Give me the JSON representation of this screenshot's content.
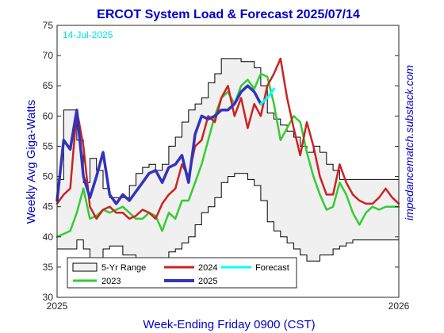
{
  "chart_data": {
    "type": "line",
    "title": "ERCOT System Load & Forecast 2025/07/14",
    "ylabel": "Weekly Avg Giga-Watts",
    "xlabel": "Week-Ending Friday 0900 (CST)",
    "right_label": "impedancematch.substack.com",
    "date_label": "14-Jul-2025",
    "x_tick_labels": [
      "2025",
      "2026"
    ],
    "y_ticks": [
      30,
      35,
      40,
      45,
      50,
      55,
      60,
      65,
      70,
      75
    ],
    "xlim": [
      0,
      52
    ],
    "ylim": [
      30,
      75
    ],
    "grid": false,
    "legend_position": "lower-left",
    "legend": [
      "5-Yr Range",
      "2024",
      "Forecast",
      "2023",
      "2025"
    ],
    "range_5yr": {
      "name": "5-Yr Range",
      "upper": [
        49.5,
        61,
        61,
        56,
        49,
        53,
        51,
        48,
        46.5,
        46.5,
        46.5,
        48.5,
        50.5,
        51.5,
        52,
        51,
        52,
        55,
        56.5,
        59,
        61,
        62,
        63,
        65.5,
        67,
        69.5,
        69.5,
        69.5,
        69,
        69,
        68,
        65,
        60.5,
        59.5,
        58.5,
        57.5,
        56.5,
        55,
        54,
        55,
        54,
        52,
        51,
        49.5,
        49.5,
        49.5,
        49.5,
        49.5,
        49.5,
        49.5,
        49.5,
        49.5,
        49.5
      ],
      "lower": [
        38,
        38,
        38,
        39.5,
        38,
        36.5,
        36.5,
        38,
        38.5,
        38.5,
        37,
        37,
        36.5,
        36.5,
        35.5,
        35,
        36,
        37.5,
        38,
        39,
        40,
        42,
        44,
        45,
        46.5,
        49,
        50,
        50.5,
        50.5,
        49.5,
        48.5,
        46,
        42.5,
        41,
        40,
        39,
        38,
        37,
        36,
        36,
        37,
        37,
        38,
        38.5,
        39,
        39.5,
        39.5,
        39.5,
        39.5,
        39.5,
        39.5,
        39.5,
        39.5
      ]
    },
    "series": [
      {
        "name": "2023",
        "color": "#33cc33",
        "values": [
          40,
          40.5,
          41,
          44,
          48,
          43,
          43.5,
          44.5,
          44,
          44.5,
          45,
          44,
          43,
          43,
          44,
          43.5,
          41,
          44,
          43,
          46,
          46,
          49,
          52,
          56,
          60,
          63,
          64,
          62,
          65,
          66,
          64.5,
          67,
          66.5,
          62,
          56,
          58,
          60,
          59,
          54,
          50,
          47,
          44.5,
          45,
          49,
          47,
          44,
          42,
          44,
          45,
          44.5,
          45,
          45,
          45
        ]
      },
      {
        "name": "2024",
        "color": "#cc2222",
        "values": [
          45.5,
          47,
          48,
          61,
          55,
          45,
          43,
          44.5,
          45,
          44,
          44,
          43,
          43.5,
          44.5,
          44,
          43,
          45.5,
          47,
          48,
          52,
          50,
          55,
          56,
          60,
          59,
          63,
          65,
          60,
          63,
          58,
          62,
          60,
          65,
          67,
          69.5,
          63,
          58,
          53.5,
          59,
          55,
          50,
          47,
          47,
          52,
          49,
          47,
          46,
          45.5,
          45.5,
          46.5,
          48,
          46.5,
          45.5
        ]
      },
      {
        "name": "2025",
        "color": "#3333bb",
        "values": [
          46,
          56,
          54.5,
          61,
          50,
          46.5,
          50,
          54,
          47,
          45.5,
          47,
          46,
          47.5,
          49,
          50.5,
          51,
          49,
          51.5,
          52,
          53.5,
          49,
          57,
          60,
          59.5,
          60,
          61,
          61,
          62,
          64,
          65,
          64,
          62
        ]
      },
      {
        "name": "Forecast",
        "color": "#00ffff",
        "x_start": 31,
        "values": [
          62,
          63,
          64.5
        ]
      }
    ]
  }
}
